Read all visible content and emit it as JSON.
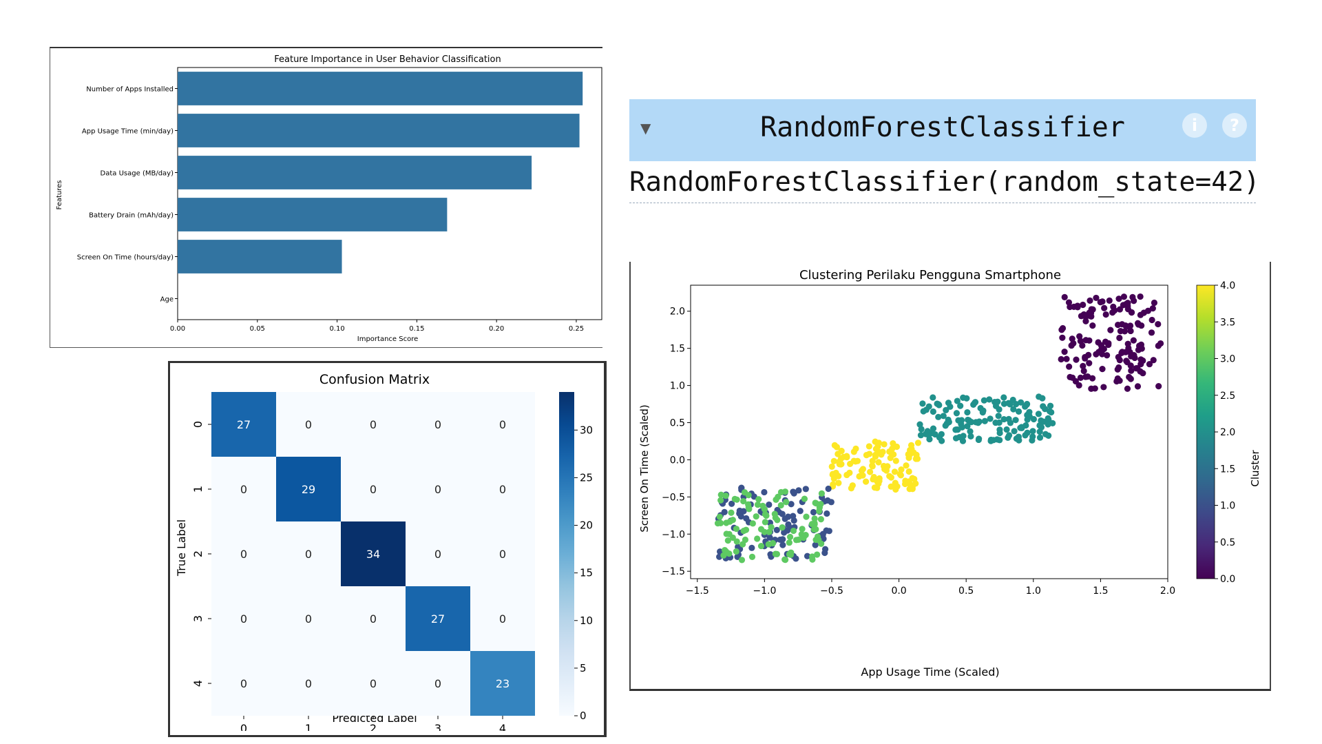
{
  "model_widget": {
    "title": "RandomForestClassifier",
    "params_text": "RandomForestClassifier(random_state=42)",
    "toggle_icon": "caret-down-icon",
    "info_badge": "i",
    "help_badge": "?",
    "header_color": "#b3d9f7"
  },
  "chart_data": [
    {
      "type": "bar",
      "orientation": "horizontal",
      "title": "Feature Importance in User Behavior Classification",
      "xlabel": "Importance Score",
      "ylabel": "Features",
      "categories": [
        "Number of Apps Installed",
        "App Usage Time (min/day)",
        "Data Usage (MB/day)",
        "Battery Drain (mAh/day)",
        "Screen On Time (hours/day)",
        "Age"
      ],
      "values": [
        0.254,
        0.252,
        0.222,
        0.169,
        0.103,
        0.0
      ],
      "xlim": [
        0,
        0.266
      ],
      "xticks": [
        "0.00",
        "0.05",
        "0.10",
        "0.15",
        "0.20",
        "0.25"
      ],
      "color": "#3274a1"
    },
    {
      "type": "heatmap",
      "title": "Confusion Matrix",
      "xlabel": "Predicted Label",
      "ylabel": "True Label",
      "x_labels": [
        "0",
        "1",
        "2",
        "3",
        "4"
      ],
      "y_labels": [
        "0",
        "1",
        "2",
        "3",
        "4"
      ],
      "matrix": [
        [
          27,
          0,
          0,
          0,
          0
        ],
        [
          0,
          29,
          0,
          0,
          0
        ],
        [
          0,
          0,
          34,
          0,
          0
        ],
        [
          0,
          0,
          0,
          27,
          0
        ],
        [
          0,
          0,
          0,
          0,
          23
        ]
      ],
      "colorbar_range": [
        0,
        34
      ],
      "colorbar_ticks": [
        "0",
        "5",
        "10",
        "15",
        "20",
        "25",
        "30"
      ],
      "colormap": "Blues"
    },
    {
      "type": "scatter",
      "title": "Clustering Perilaku Pengguna Smartphone",
      "xlabel": "App Usage Time (Scaled)",
      "ylabel": "Screen On Time (Scaled)",
      "xlim": [
        -1.55,
        2.0
      ],
      "ylim": [
        -1.6,
        2.35
      ],
      "xticks": [
        "−1.5",
        "−1.0",
        "−0.5",
        "0.0",
        "0.5",
        "1.0",
        "1.5",
        "2.0"
      ],
      "yticks": [
        "−1.5",
        "−1.0",
        "−0.5",
        "0.0",
        "0.5",
        "1.0",
        "1.5",
        "2.0"
      ],
      "colorbar_label": "Cluster",
      "colorbar_range": [
        0,
        4
      ],
      "colorbar_ticks": [
        "0.0",
        "0.5",
        "1.0",
        "1.5",
        "2.0",
        "2.5",
        "3.0",
        "3.5",
        "4.0"
      ],
      "colormap": "viridis",
      "clusters": [
        {
          "cluster": 0,
          "color": "#440154",
          "x_range": [
            1.2,
            1.95
          ],
          "y_range": [
            0.95,
            2.2
          ],
          "count": 150
        },
        {
          "cluster": 2,
          "color": "#21918c",
          "x_range": [
            0.15,
            1.15
          ],
          "y_range": [
            0.25,
            0.85
          ],
          "count": 140
        },
        {
          "cluster": 4,
          "color": "#fde725",
          "x_range": [
            -0.5,
            0.15
          ],
          "y_range": [
            -0.4,
            0.25
          ],
          "count": 110
        },
        {
          "cluster": 1,
          "color": "#3b528b",
          "x_range": [
            -1.35,
            -0.5
          ],
          "y_range": [
            -1.35,
            -0.35
          ],
          "count": 100
        },
        {
          "cluster": 3,
          "color": "#5ec962",
          "x_range": [
            -1.35,
            -0.55
          ],
          "y_range": [
            -1.35,
            -0.4
          ],
          "count": 100
        }
      ]
    }
  ]
}
